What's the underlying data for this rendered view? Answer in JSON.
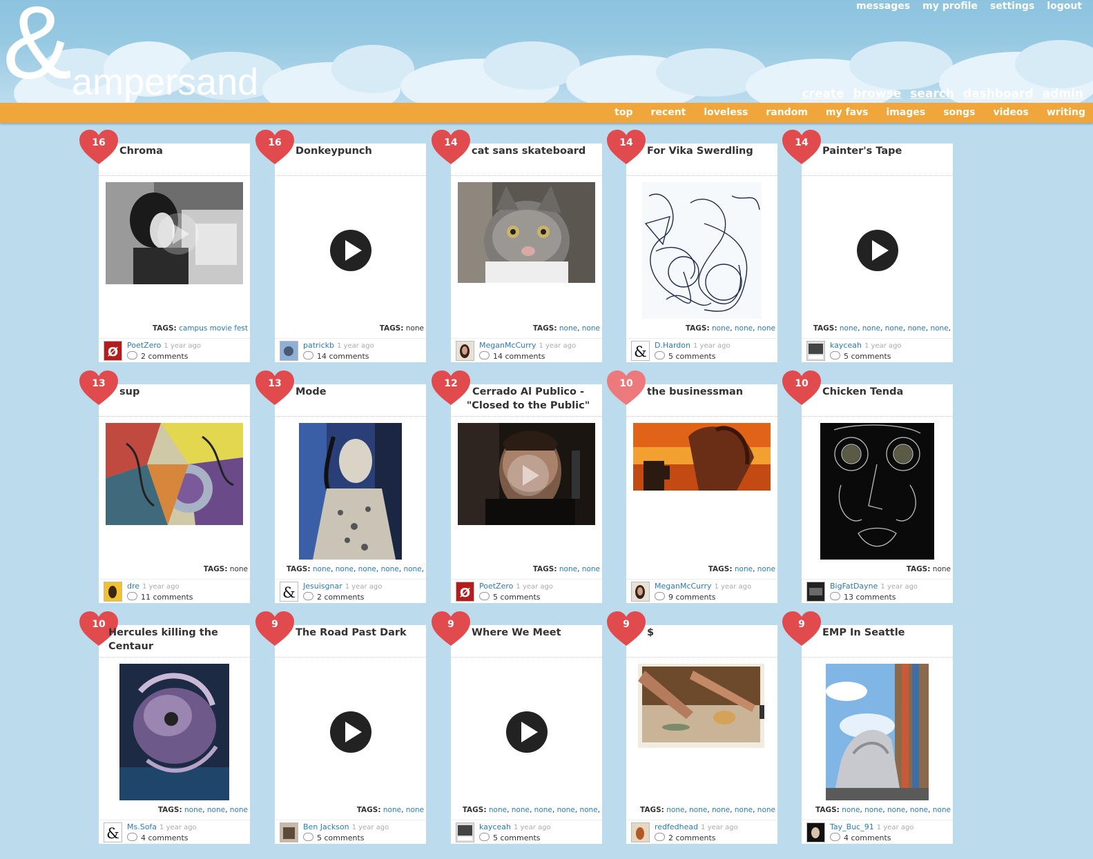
{
  "logo": {
    "symbol": "&",
    "word": "ampersand"
  },
  "top_nav": [
    "messages",
    "my profile",
    "settings",
    "logout"
  ],
  "main_nav": [
    "create",
    "browse",
    "search",
    "dashboard",
    "admin"
  ],
  "sub_nav": [
    "top",
    "recent",
    "loveless",
    "random",
    "my favs",
    "images",
    "songs",
    "videos",
    "writing"
  ],
  "colors": {
    "sky": "#8dc3de",
    "orange_bar": "#f0a63a",
    "heart": "#e14b4e",
    "link": "#2a7ab9"
  },
  "tags_label": "TAGS:",
  "posts": [
    {
      "likes": "16",
      "title": "Chroma",
      "media": "image",
      "tags": [
        "campus movie fest"
      ],
      "author": "PoetZero",
      "age": "1 year ago",
      "comments": "2 comments"
    },
    {
      "likes": "16",
      "title": "Donkeypunch",
      "media": "video",
      "tags": [
        "none"
      ],
      "tags_plain": true,
      "author": "patrickb",
      "age": "1 year ago",
      "comments": "14 comments"
    },
    {
      "likes": "14",
      "title": "cat sans skateboard",
      "media": "image",
      "tags": [
        "none",
        "none"
      ],
      "author": "MeganMcCurry",
      "age": "1 year ago",
      "comments": "14 comments"
    },
    {
      "likes": "14",
      "title": "For Vika Swerdling",
      "media": "image",
      "tags": [
        "none",
        "none",
        "none"
      ],
      "author": "D.Hardon",
      "age": "1 year ago",
      "comments": "5 comments"
    },
    {
      "likes": "14",
      "title": "Painter's Tape",
      "media": "video",
      "tags": [
        "none",
        "none",
        "none",
        "none",
        "none",
        ""
      ],
      "author": "kayceah",
      "age": "1 year ago",
      "comments": "5 comments"
    },
    {
      "likes": "13",
      "title": "sup",
      "media": "image",
      "tags": [
        "none"
      ],
      "tags_plain": true,
      "author": "dre",
      "age": "1 year ago",
      "comments": "11 comments"
    },
    {
      "likes": "13",
      "title": "Mode",
      "media": "image",
      "tags": [
        "none",
        "none",
        "none",
        "none",
        "none",
        ""
      ],
      "author": "Jesuisgnar",
      "age": "1 year ago",
      "comments": "2 comments"
    },
    {
      "likes": "12",
      "title": "Cerrado Al Publico - \"Closed to the Public\"",
      "media": "image",
      "tags": [
        "none",
        "none"
      ],
      "author": "PoetZero",
      "age": "1 year ago",
      "comments": "5 comments"
    },
    {
      "likes": "10",
      "title": "the businessman",
      "media": "image",
      "tags": [
        "none",
        "none"
      ],
      "author": "MeganMcCurry",
      "age": "1 year ago",
      "comments": "9 comments"
    },
    {
      "likes": "10",
      "title": "Chicken Tenda",
      "media": "image",
      "tags": [
        "none"
      ],
      "tags_plain": true,
      "author": "BigFatDayne",
      "age": "1 year ago",
      "comments": "13 comments"
    },
    {
      "likes": "10",
      "title": "Hercules killing the Centaur",
      "media": "image",
      "tags": [
        "none",
        "none",
        "none"
      ],
      "author": "Ms.Sofa",
      "age": "1 year ago",
      "comments": "4 comments"
    },
    {
      "likes": "9",
      "title": "The Road Past Dark",
      "media": "video",
      "tags": [
        "none",
        "none"
      ],
      "author": "Ben Jackson",
      "age": "1 year ago",
      "comments": "5 comments"
    },
    {
      "likes": "9",
      "title": "Where We Meet",
      "media": "video",
      "tags": [
        "none",
        "none",
        "none",
        "none",
        "none",
        ""
      ],
      "author": "kayceah",
      "age": "1 year ago",
      "comments": "5 comments"
    },
    {
      "likes": "9",
      "title": "$",
      "media": "image",
      "tags": [
        "none",
        "none",
        "none",
        "none",
        "none"
      ],
      "author": "redfedhead",
      "age": "1 year ago",
      "comments": "2 comments"
    },
    {
      "likes": "9",
      "title": "EMP In Seattle",
      "media": "image",
      "tags": [
        "none",
        "none",
        "none",
        "none",
        "none"
      ],
      "author": "Tay_Buc_91",
      "age": "1 year ago",
      "comments": "4 comments"
    }
  ]
}
